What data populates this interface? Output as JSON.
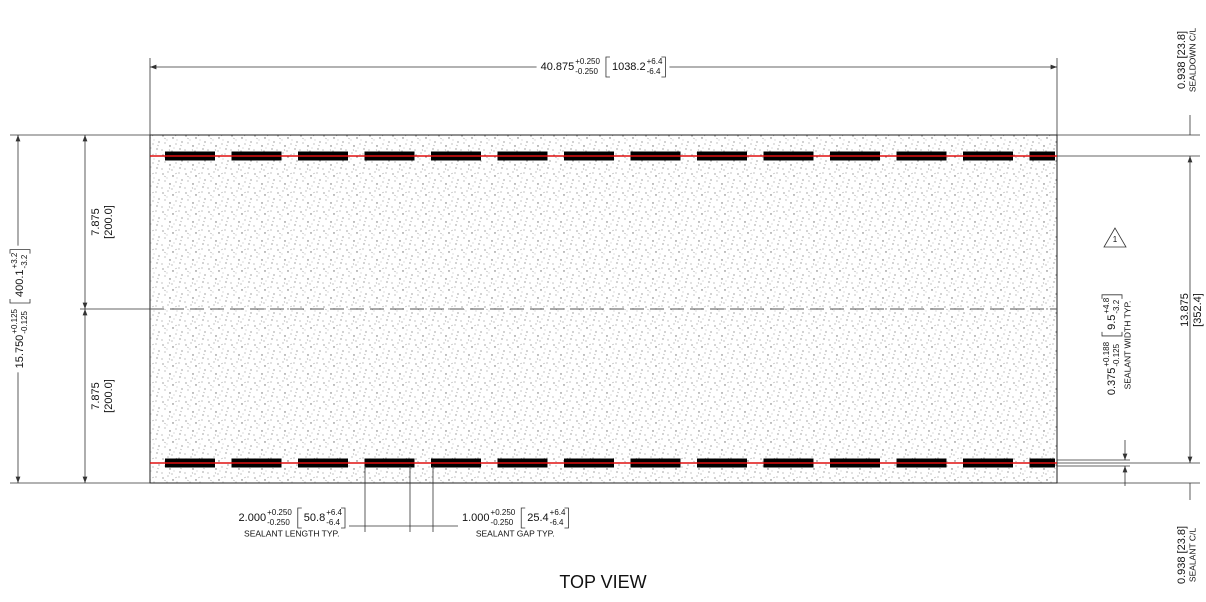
{
  "top_dim": {
    "value": "40.875",
    "tol_plus": "+0.250",
    "tol_minus": "-0.250",
    "metric": "1038.2",
    "metric_plus": "+6.4",
    "metric_minus": "-6.4"
  },
  "overall_width": {
    "value": "15.750",
    "tol_plus": "+0.125",
    "tol_minus": "-0.125",
    "metric": "400.1",
    "metric_plus": "+3.2",
    "metric_minus": "-3.2"
  },
  "half_dims": [
    {
      "value": "7.875",
      "metric": "[200.0]"
    },
    {
      "value": "7.875",
      "metric": "[200.0]"
    }
  ],
  "sealdown_cl": {
    "value": "0.938 [23.8]",
    "label": "SEALDOWN C/L"
  },
  "sealant_spacing": {
    "value": "13.875",
    "metric": "[352.4]"
  },
  "sealant_width": {
    "value": "0.375",
    "tol_plus": "+0.188",
    "tol_minus": "-0.125",
    "metric": "9.5",
    "metric_plus": "+4.8",
    "metric_minus": "-3.2",
    "label": "SEALANT WIDTH TYP."
  },
  "note_marker": "1",
  "sealant_cl": {
    "value": "0.938 [23.8]",
    "label": "SEALANT C/L"
  },
  "sealant_length": {
    "value": "2.000",
    "tol_plus": "+0.250",
    "tol_minus": "-0.250",
    "metric": "50.8",
    "metric_plus": "+6.4",
    "metric_minus": "-6.4",
    "label": "SEALANT LENGTH TYP."
  },
  "sealant_gap": {
    "value": "1.000",
    "tol_plus": "+0.250",
    "tol_minus": "-0.250",
    "metric": "25.4",
    "metric_plus": "+6.4",
    "metric_minus": "-6.4",
    "label": "SEALANT GAP TYP."
  },
  "view_title": "TOP VIEW"
}
